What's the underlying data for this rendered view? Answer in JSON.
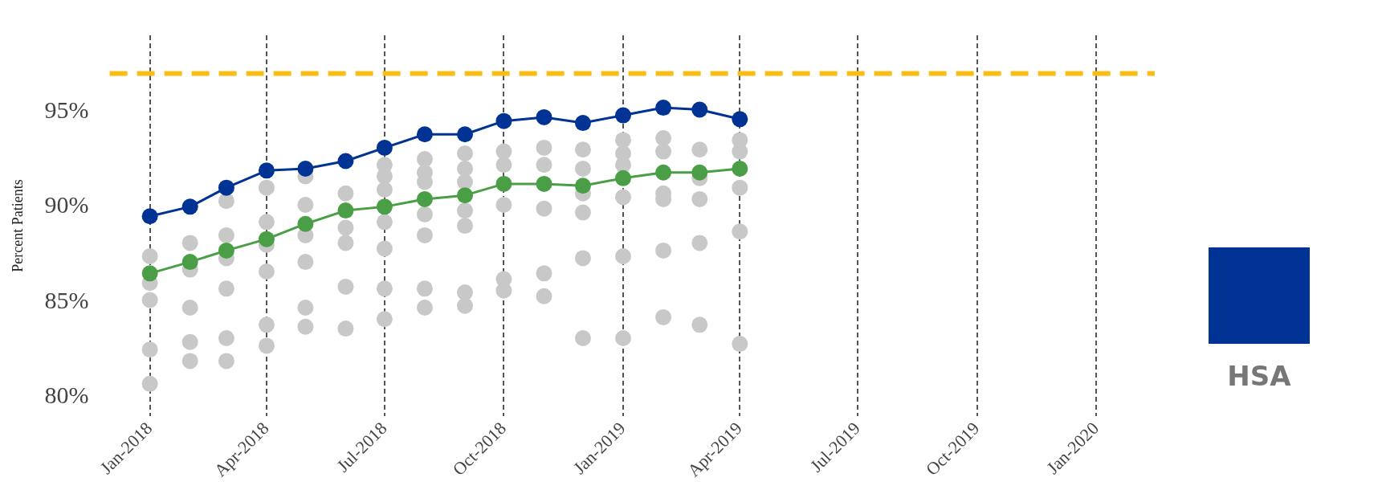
{
  "chart_data": {
    "type": "line",
    "ylabel": "Percent Patients",
    "x": [
      "2018-01",
      "2018-02",
      "2018-03",
      "2018-04",
      "2018-05",
      "2018-06",
      "2018-07",
      "2018-08",
      "2018-09",
      "2018-10",
      "2018-11",
      "2018-12",
      "2019-01",
      "2019-02",
      "2019-03",
      "2019-04"
    ],
    "series": [
      {
        "type": "scatter",
        "color": "#c8c8c8",
        "x": [
          "2018-01",
          "2018-01",
          "2018-01",
          "2018-01",
          "2018-01",
          "2018-02",
          "2018-02",
          "2018-02",
          "2018-02",
          "2018-02",
          "2018-03",
          "2018-03",
          "2018-03",
          "2018-03",
          "2018-03",
          "2018-03",
          "2018-04",
          "2018-04",
          "2018-04",
          "2018-04",
          "2018-04",
          "2018-04",
          "2018-05",
          "2018-05",
          "2018-05",
          "2018-05",
          "2018-05",
          "2018-05",
          "2018-06",
          "2018-06",
          "2018-06",
          "2018-06",
          "2018-06",
          "2018-07",
          "2018-07",
          "2018-07",
          "2018-07",
          "2018-07",
          "2018-07",
          "2018-07",
          "2018-08",
          "2018-08",
          "2018-08",
          "2018-08",
          "2018-08",
          "2018-08",
          "2018-08",
          "2018-09",
          "2018-09",
          "2018-09",
          "2018-09",
          "2018-09",
          "2018-09",
          "2018-09",
          "2018-10",
          "2018-10",
          "2018-10",
          "2018-10",
          "2018-10",
          "2018-11",
          "2018-11",
          "2018-11",
          "2018-11",
          "2018-11",
          "2018-12",
          "2018-12",
          "2018-12",
          "2018-12",
          "2018-12",
          "2018-12",
          "2019-01",
          "2019-01",
          "2019-01",
          "2019-01",
          "2019-01",
          "2019-01",
          "2019-02",
          "2019-02",
          "2019-02",
          "2019-02",
          "2019-02",
          "2019-02",
          "2019-03",
          "2019-03",
          "2019-03",
          "2019-03",
          "2019-03",
          "2019-04",
          "2019-04",
          "2019-04",
          "2019-04",
          "2019-04"
        ],
        "values": [
          87.4,
          86.0,
          85.1,
          82.5,
          80.7,
          88.1,
          86.7,
          84.7,
          82.9,
          81.9,
          90.3,
          88.5,
          87.3,
          85.7,
          83.1,
          81.9,
          91.0,
          89.2,
          88.0,
          86.6,
          83.8,
          82.7,
          91.6,
          90.1,
          88.5,
          87.1,
          84.7,
          83.7,
          90.7,
          88.9,
          88.1,
          85.8,
          83.6,
          92.2,
          91.6,
          90.9,
          89.2,
          87.8,
          85.7,
          84.1,
          92.5,
          91.8,
          91.3,
          89.6,
          88.5,
          85.7,
          84.7,
          92.8,
          92.0,
          91.3,
          89.8,
          89.0,
          85.5,
          84.8,
          92.9,
          92.2,
          90.1,
          86.2,
          85.6,
          93.1,
          92.2,
          89.9,
          86.5,
          85.3,
          93.0,
          92.0,
          90.7,
          89.7,
          87.3,
          83.1,
          93.5,
          92.8,
          92.2,
          90.5,
          87.4,
          83.1,
          93.6,
          92.9,
          90.7,
          90.4,
          87.7,
          84.2,
          93.0,
          91.5,
          90.4,
          88.1,
          83.8,
          93.5,
          92.9,
          91.0,
          88.7,
          82.8
        ]
      },
      {
        "type": "line",
        "color": "#4a9e45",
        "values": [
          86.5,
          87.1,
          87.7,
          88.3,
          89.1,
          89.8,
          90.0,
          90.4,
          90.6,
          91.2,
          91.2,
          91.1,
          91.5,
          91.8,
          91.8,
          92.0
        ]
      },
      {
        "type": "line",
        "name": "HSA",
        "color": "#003393",
        "values": [
          89.5,
          90.0,
          91.0,
          91.9,
          92.0,
          92.4,
          93.1,
          93.8,
          93.8,
          94.5,
          94.7,
          94.4,
          94.8,
          95.2,
          95.1,
          94.6
        ]
      }
    ],
    "xlim": [
      "2017-12-01",
      "2020-02-15"
    ],
    "xticks": [
      {
        "value": "2018-01",
        "label": "Jan-2018"
      },
      {
        "value": "2018-04",
        "label": "Apr-2018"
      },
      {
        "value": "2018-07",
        "label": "Jul-2018"
      },
      {
        "value": "2018-10",
        "label": "Oct-2018"
      },
      {
        "value": "2019-01",
        "label": "Jan-2019"
      },
      {
        "value": "2019-04",
        "label": "Apr-2019"
      },
      {
        "value": "2019-07",
        "label": "Jul-2019"
      },
      {
        "value": "2019-10",
        "label": "Oct-2019"
      },
      {
        "value": "2020-01",
        "label": "Jan-2020"
      }
    ],
    "ylim": [
      79,
      99
    ],
    "yticks": [
      {
        "value": 80,
        "label": "80%"
      },
      {
        "value": 85,
        "label": "85%"
      },
      {
        "value": 90,
        "label": "90%"
      },
      {
        "value": 95,
        "label": "95%"
      }
    ],
    "ref_lines": [
      {
        "axis": "y",
        "value": 97,
        "color": "#f9bd16",
        "line_style": "dashed"
      }
    ],
    "grid": "x",
    "legend": "right",
    "marker": "circle",
    "line_style": "solid"
  }
}
